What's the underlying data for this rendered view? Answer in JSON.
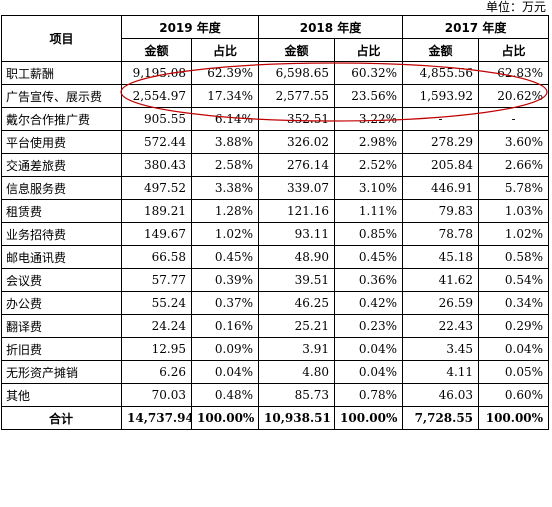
{
  "unit_label": "单位：万元",
  "header": {
    "item": "项目",
    "years": [
      "2019 年度",
      "2018 年度",
      "2017 年度"
    ],
    "amount": "金额",
    "ratio": "占比"
  },
  "rows": [
    {
      "name": "职工薪酬",
      "y2019": [
        "9,195.08",
        "62.39%"
      ],
      "y2018": [
        "6,598.65",
        "60.32%"
      ],
      "y2017": [
        "4,855.56",
        "62.83%"
      ]
    },
    {
      "name": "广告宣传、展示费",
      "y2019": [
        "2,554.97",
        "17.34%"
      ],
      "y2018": [
        "2,577.55",
        "23.56%"
      ],
      "y2017": [
        "1,593.92",
        "20.62%"
      ]
    },
    {
      "name": "戴尔合作推广费",
      "y2019": [
        "905.55",
        "6.14%"
      ],
      "y2018": [
        "352.51",
        "3.22%"
      ],
      "y2017": [
        "-",
        "-"
      ]
    },
    {
      "name": "平台使用费",
      "y2019": [
        "572.44",
        "3.88%"
      ],
      "y2018": [
        "326.02",
        "2.98%"
      ],
      "y2017": [
        "278.29",
        "3.60%"
      ]
    },
    {
      "name": "交通差旅费",
      "y2019": [
        "380.43",
        "2.58%"
      ],
      "y2018": [
        "276.14",
        "2.52%"
      ],
      "y2017": [
        "205.84",
        "2.66%"
      ]
    },
    {
      "name": "信息服务费",
      "y2019": [
        "497.52",
        "3.38%"
      ],
      "y2018": [
        "339.07",
        "3.10%"
      ],
      "y2017": [
        "446.91",
        "5.78%"
      ]
    },
    {
      "name": "租赁费",
      "y2019": [
        "189.21",
        "1.28%"
      ],
      "y2018": [
        "121.16",
        "1.11%"
      ],
      "y2017": [
        "79.83",
        "1.03%"
      ]
    },
    {
      "name": "业务招待费",
      "y2019": [
        "149.67",
        "1.02%"
      ],
      "y2018": [
        "93.11",
        "0.85%"
      ],
      "y2017": [
        "78.78",
        "1.02%"
      ]
    },
    {
      "name": "邮电通讯费",
      "y2019": [
        "66.58",
        "0.45%"
      ],
      "y2018": [
        "48.90",
        "0.45%"
      ],
      "y2017": [
        "45.18",
        "0.58%"
      ]
    },
    {
      "name": "会议费",
      "y2019": [
        "57.77",
        "0.39%"
      ],
      "y2018": [
        "39.51",
        "0.36%"
      ],
      "y2017": [
        "41.62",
        "0.54%"
      ]
    },
    {
      "name": "办公费",
      "y2019": [
        "55.24",
        "0.37%"
      ],
      "y2018": [
        "46.25",
        "0.42%"
      ],
      "y2017": [
        "26.59",
        "0.34%"
      ]
    },
    {
      "name": "翻译费",
      "y2019": [
        "24.24",
        "0.16%"
      ],
      "y2018": [
        "25.21",
        "0.23%"
      ],
      "y2017": [
        "22.43",
        "0.29%"
      ]
    },
    {
      "name": "折旧费",
      "y2019": [
        "12.95",
        "0.09%"
      ],
      "y2018": [
        "3.91",
        "0.04%"
      ],
      "y2017": [
        "3.45",
        "0.04%"
      ]
    },
    {
      "name": "无形资产摊销",
      "y2019": [
        "6.26",
        "0.04%"
      ],
      "y2018": [
        "4.80",
        "0.04%"
      ],
      "y2017": [
        "4.11",
        "0.05%"
      ]
    },
    {
      "name": "其他",
      "y2019": [
        "70.03",
        "0.48%"
      ],
      "y2018": [
        "85.73",
        "0.78%"
      ],
      "y2017": [
        "46.03",
        "0.60%"
      ]
    }
  ],
  "total": {
    "name": "合计",
    "y2019": [
      "14,737.94",
      "100.00%"
    ],
    "y2018": [
      "10,938.51",
      "100.00%"
    ],
    "y2017": [
      "7,728.55",
      "100.00%"
    ]
  },
  "colors": {
    "highlight_ellipse": "#c00000"
  }
}
